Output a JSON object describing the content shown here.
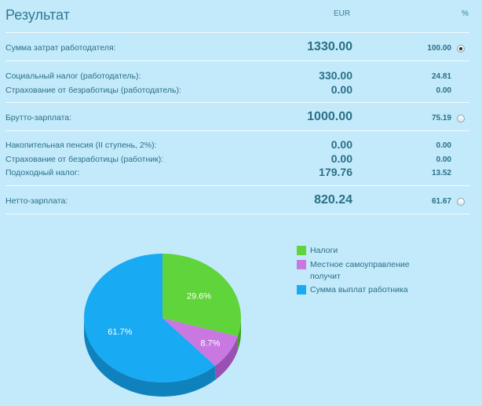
{
  "header": {
    "title": "Результат",
    "col_eur": "EUR",
    "col_pct": "%"
  },
  "rows": [
    {
      "label": "Сумма затрат работодателя:",
      "eur": "1330.00",
      "pct": "100.00",
      "radio": true,
      "selected": true
    },
    {
      "label": "Социальный налог (работодатель):",
      "eur": "330.00",
      "pct": "24.81",
      "radio": false,
      "selected": false
    },
    {
      "label": "Страхование от безработицы (работодатель):",
      "eur": "0.00",
      "pct": "0.00",
      "radio": false,
      "selected": false
    },
    {
      "label": "Брутто-зарплата:",
      "eur": "1000.00",
      "pct": "75.19",
      "radio": true,
      "selected": false
    },
    {
      "label": "Накопительная пенсия (II ступень, 2%):",
      "eur": "0.00",
      "pct": "0.00",
      "radio": false,
      "selected": false
    },
    {
      "label": "Страхование от безработицы (работник):",
      "eur": "0.00",
      "pct": "0.00",
      "radio": false,
      "selected": false
    },
    {
      "label": "Подоходный налог:",
      "eur": "179.76",
      "pct": "13.52",
      "radio": false,
      "selected": false
    },
    {
      "label": "Нетто-зарплата:",
      "eur": "820.24",
      "pct": "61.67",
      "radio": true,
      "selected": false
    }
  ],
  "chart_data": {
    "type": "pie",
    "categories": [
      "Налоги",
      "Местное самоуправление получит",
      "Сумма выплат работника"
    ],
    "values": [
      29.6,
      8.7,
      61.7
    ],
    "labels": [
      "29.6%",
      "8.7%",
      "61.7%"
    ],
    "colors": [
      "#5fd43b",
      "#c878e0",
      "#18aaf2"
    ],
    "side_colors": [
      "#3f9e24",
      "#9a4fb3",
      "#0f82bd"
    ],
    "legend_position": "right"
  }
}
